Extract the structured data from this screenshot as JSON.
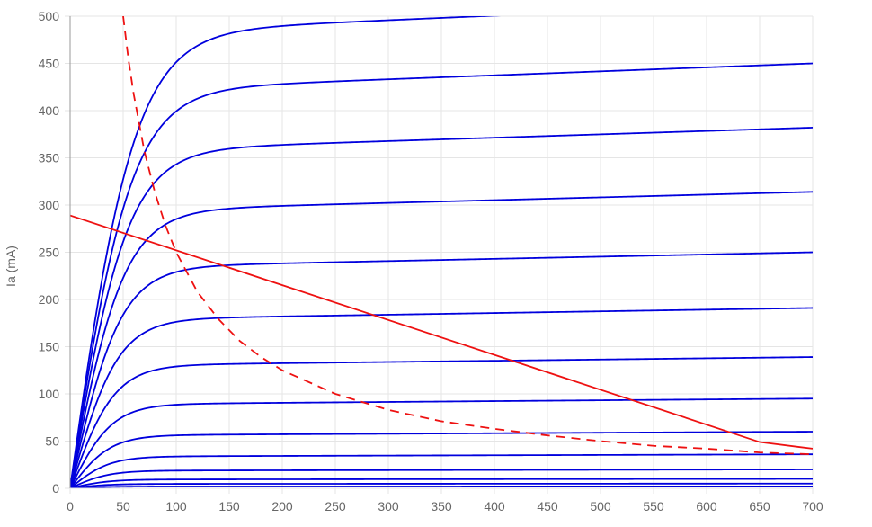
{
  "chart_data": {
    "type": "line",
    "title": "",
    "xlabel": "",
    "ylabel": "Ia (mA)",
    "xlim": [
      0,
      700
    ],
    "ylim": [
      0,
      500
    ],
    "x_ticks": [
      0,
      50,
      100,
      150,
      200,
      250,
      300,
      350,
      400,
      450,
      500,
      550,
      600,
      650,
      700
    ],
    "y_ticks": [
      0,
      50,
      100,
      150,
      200,
      250,
      300,
      350,
      400,
      450,
      500
    ],
    "grid": true,
    "legend": "none",
    "colors": {
      "curves": "#0000dd",
      "load_line": "#ee1111",
      "dissipation": "#ee1111",
      "grid": "#e5e5e5",
      "axis": "#999999"
    },
    "anode_curve_saturation": [
      515,
      450,
      382,
      314,
      250,
      191,
      139,
      95,
      60,
      36,
      20,
      10,
      5,
      2
    ],
    "anode_curve_knee": 35,
    "load_line": {
      "x": [
        0,
        650,
        700
      ],
      "y": [
        289,
        49,
        42
      ]
    },
    "max_dissipation_curve": {
      "x": [
        50,
        55,
        60,
        70,
        80,
        90,
        100,
        120,
        140,
        160,
        180,
        200,
        250,
        300,
        350,
        400,
        450,
        500,
        550,
        600,
        650,
        700
      ],
      "y": [
        500,
        454,
        417,
        357,
        313,
        278,
        250,
        208,
        179,
        156,
        139,
        125,
        100,
        83,
        71,
        63,
        56,
        50,
        45,
        42,
        38,
        36
      ]
    }
  }
}
